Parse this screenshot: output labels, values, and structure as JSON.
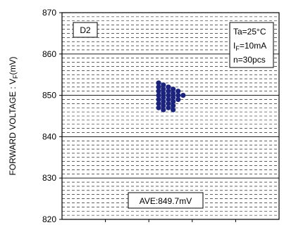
{
  "chart_data": {
    "type": "scatter",
    "ylabel_prefix": "FORWARD VOLTAGE : V",
    "ylabel_sub": "F",
    "ylabel_suffix": "(mV)",
    "ylim": [
      820,
      870
    ],
    "yticks": [
      "870",
      "860",
      "850",
      "840",
      "830",
      "820"
    ],
    "grid": true,
    "series": [
      {
        "color": "#1a237e",
        "x": [
          0.445,
          0.445,
          0.445,
          0.445,
          0.445,
          0.445,
          0.445,
          0.467,
          0.467,
          0.467,
          0.467,
          0.467,
          0.467,
          0.467,
          0.49,
          0.49,
          0.49,
          0.49,
          0.49,
          0.49,
          0.512,
          0.512,
          0.512,
          0.512,
          0.512,
          0.512,
          0.535,
          0.535,
          0.535,
          0.558
        ],
        "y": [
          853,
          852,
          851,
          850,
          849,
          848,
          847,
          852.5,
          851.5,
          850.5,
          849.5,
          848.5,
          847.5,
          846.5,
          852,
          851,
          850,
          849,
          848,
          847,
          851.5,
          850.5,
          849.5,
          848.5,
          847.5,
          846.5,
          851,
          850,
          849,
          850
        ]
      }
    ],
    "annotations": {
      "sample_label": "D2",
      "ta": "Ta=25°C",
      "if_prefix": "I",
      "if_sub": "F",
      "if_suffix": "=10mA",
      "n": "n=30pcs",
      "average": "AVE:849.7mV"
    }
  }
}
